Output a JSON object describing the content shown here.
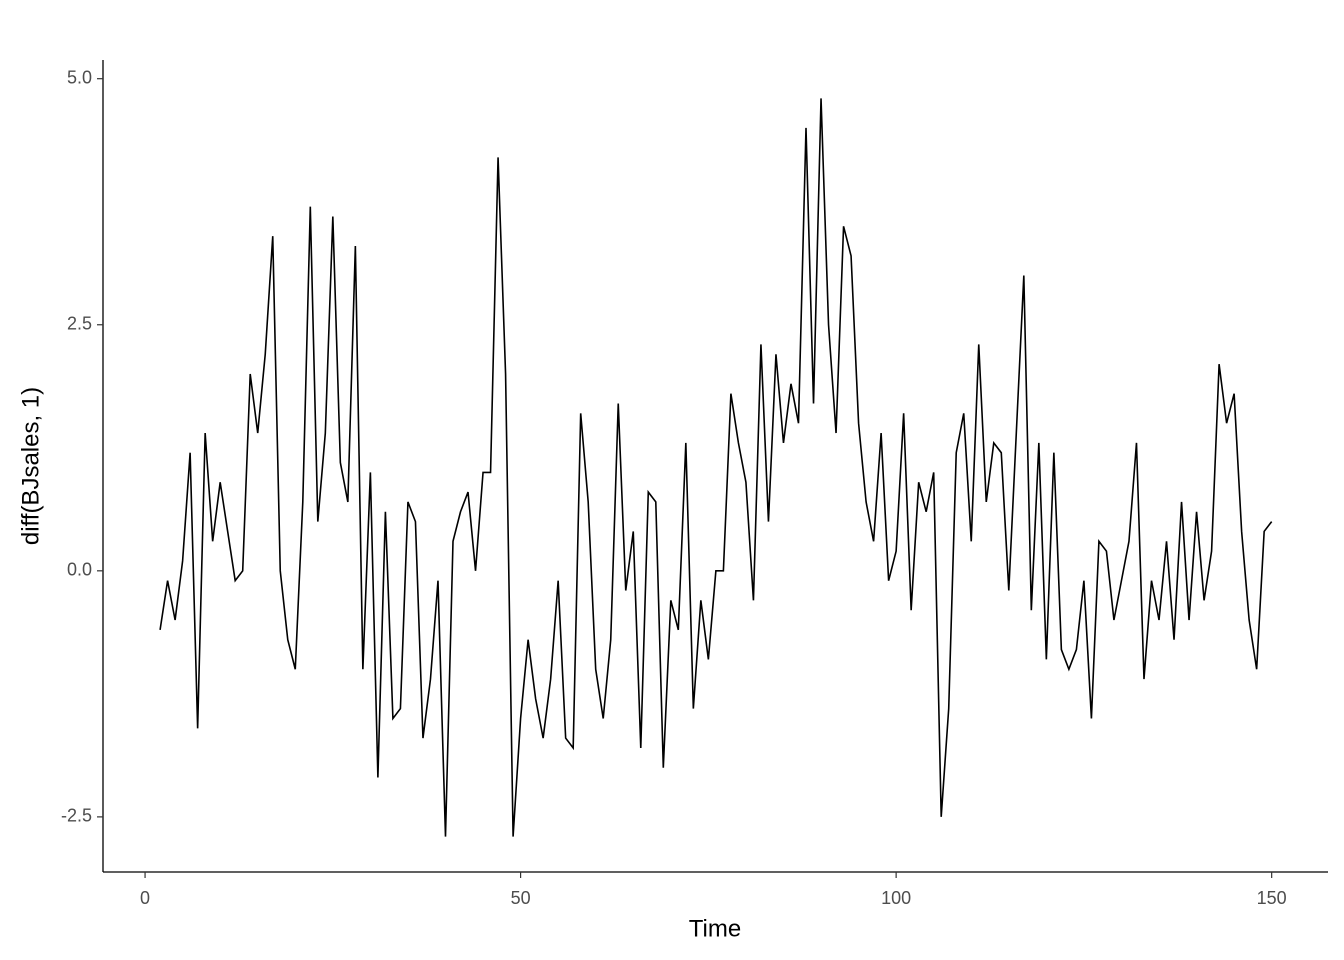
{
  "chart_data": {
    "type": "line",
    "x_label": "Time",
    "y_label": "diff(BJsales, 1)",
    "x": [
      2,
      3,
      4,
      5,
      6,
      7,
      8,
      9,
      10,
      11,
      12,
      13,
      14,
      15,
      16,
      17,
      18,
      19,
      20,
      21,
      22,
      23,
      24,
      25,
      26,
      27,
      28,
      29,
      30,
      31,
      32,
      33,
      34,
      35,
      36,
      37,
      38,
      39,
      40,
      41,
      42,
      43,
      44,
      45,
      46,
      47,
      48,
      49,
      50,
      51,
      52,
      53,
      54,
      55,
      56,
      57,
      58,
      59,
      60,
      61,
      62,
      63,
      64,
      65,
      66,
      67,
      68,
      69,
      70,
      71,
      72,
      73,
      74,
      75,
      76,
      77,
      78,
      79,
      80,
      81,
      82,
      83,
      84,
      85,
      86,
      87,
      88,
      89,
      90,
      91,
      92,
      93,
      94,
      95,
      96,
      97,
      98,
      99,
      100,
      101,
      102,
      103,
      104,
      105,
      106,
      107,
      108,
      109,
      110,
      111,
      112,
      113,
      114,
      115,
      116,
      117,
      118,
      119,
      120,
      121,
      122,
      123,
      124,
      125,
      126,
      127,
      128,
      129,
      130,
      131,
      132,
      133,
      134,
      135,
      136,
      137,
      138,
      139,
      140,
      141,
      142,
      143,
      144,
      145,
      146,
      147,
      148,
      149,
      150
    ],
    "values": [
      -0.6,
      -0.1,
      -0.5,
      0.1,
      1.2,
      -1.6,
      1.4,
      0.3,
      0.9,
      0.4,
      -0.1,
      0,
      2.0,
      1.4,
      2.2,
      3.4,
      0,
      -0.7,
      -1.0,
      0.7,
      3.7,
      0.5,
      1.4,
      3.6,
      1.1,
      0.7,
      3.3,
      -1.0,
      1.0,
      -2.1,
      0.6,
      -1.5,
      -1.4,
      0.7,
      0.5,
      -1.7,
      -1.1,
      -0.1,
      -2.7,
      0.3,
      0.6,
      0.8,
      0,
      1.0,
      1.0,
      4.2,
      2.0,
      -2.7,
      -1.5,
      -0.7,
      -1.3,
      -1.7,
      -1.1,
      -0.1,
      -1.7,
      -1.8,
      1.6,
      0.7,
      -1.0,
      -1.5,
      -0.7,
      1.7,
      -0.2,
      0.4,
      -1.8,
      0.8,
      0.7,
      -2.0,
      -0.3,
      -0.6,
      1.3,
      -1.4,
      -0.3,
      -0.9,
      0,
      0,
      1.8,
      1.3,
      0.9,
      -0.3,
      2.3,
      0.5,
      2.2,
      1.3,
      1.9,
      1.5,
      4.5,
      1.7,
      4.8,
      2.5,
      1.4,
      3.5,
      3.2,
      1.5,
      0.7,
      0.3,
      1.4,
      -0.1,
      0.2,
      1.6,
      -0.4,
      0.9,
      0.6,
      1.0,
      -2.5,
      -1.4,
      1.2,
      1.6,
      0.3,
      2.3,
      0.7,
      1.3,
      1.2,
      -0.2,
      1.4,
      3.0,
      -0.4,
      1.3,
      -0.9,
      1.2,
      -0.8,
      -1.0,
      -0.8,
      -0.1,
      -1.5,
      0.3,
      0.2,
      -0.5,
      -0.1,
      0.3,
      1.3,
      -1.1,
      -0.1,
      -0.5,
      0.3,
      -0.7,
      0.7,
      -0.5,
      0.6,
      -0.3,
      0.2,
      2.1,
      1.5,
      1.8,
      0.4,
      -0.5,
      -1.0,
      0.4,
      0.5
    ],
    "color": "#000000",
    "xlim": [
      -5.6,
      157.5
    ],
    "ylim": [
      -3.06,
      5.19
    ],
    "xticks": [
      0,
      50,
      100,
      150
    ],
    "yticks": [
      {
        "value": -2.5,
        "label": "-2.5"
      },
      {
        "value": 0,
        "label": "0.0"
      },
      {
        "value": 2.5,
        "label": "2.5"
      },
      {
        "value": 5,
        "label": "5.0"
      }
    ],
    "grid": false
  }
}
